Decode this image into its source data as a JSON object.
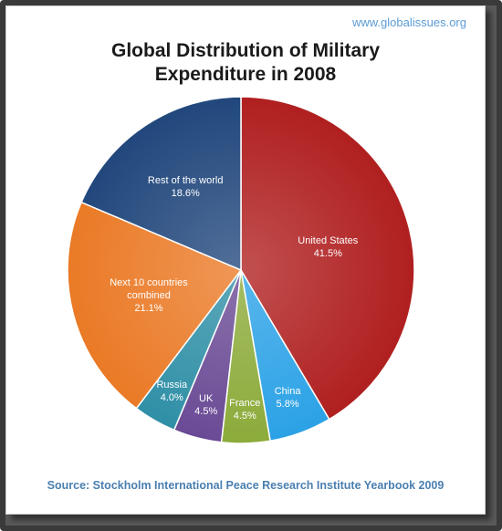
{
  "watermark": "www.globalissues.org",
  "source": "Source: Stockholm International Peace Research Institute Yearbook 2009",
  "chart_data": {
    "type": "pie",
    "title_lines": [
      "Global Distribution of Military",
      "Expenditure in 2008"
    ],
    "unit": "%",
    "slices": [
      {
        "name": "United States",
        "value": 41.5,
        "label_lines": [
          "United States",
          "41.5%"
        ],
        "color": "#b01f1f"
      },
      {
        "name": "China",
        "value": 5.8,
        "label_lines": [
          "China",
          "5.8%"
        ],
        "color": "#2ba2e6"
      },
      {
        "name": "France",
        "value": 4.5,
        "label_lines": [
          "France",
          "4.5%"
        ],
        "color": "#8cab3a"
      },
      {
        "name": "UK",
        "value": 4.5,
        "label_lines": [
          "UK",
          "4.5%"
        ],
        "color": "#6a4a95"
      },
      {
        "name": "Russia",
        "value": 4.0,
        "label_lines": [
          "Russia",
          "4.0%"
        ],
        "color": "#2f8fa6"
      },
      {
        "name": "Next 10 countries combined",
        "value": 21.1,
        "label_lines": [
          "Next 10 countries",
          "combined",
          "21.1%"
        ],
        "color": "#ea7a26"
      },
      {
        "name": "Rest of the world",
        "value": 18.6,
        "label_lines": [
          "Rest of the world",
          "18.6%"
        ],
        "color": "#21477c"
      }
    ]
  }
}
